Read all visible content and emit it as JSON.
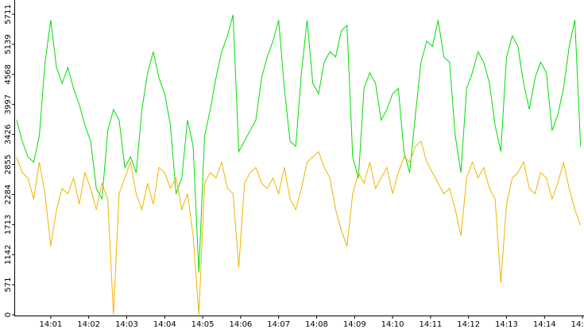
{
  "chart_data": {
    "type": "line",
    "x": [
      840.1,
      840.25,
      840.4,
      840.55,
      840.7,
      840.85,
      841,
      841.15,
      841.3,
      841.45,
      841.6,
      841.75,
      841.9,
      842.05,
      842.2,
      842.35,
      842.5,
      842.65,
      842.8,
      842.95,
      843.1,
      843.25,
      843.4,
      843.55,
      843.7,
      843.85,
      844,
      844.15,
      844.3,
      844.45,
      844.6,
      844.75,
      844.9,
      845.05,
      845.2,
      845.35,
      845.5,
      845.65,
      845.8,
      845.95,
      846.1,
      846.25,
      846.4,
      846.55,
      846.7,
      846.85,
      847,
      847.15,
      847.3,
      847.45,
      847.6,
      847.75,
      847.9,
      848.05,
      848.2,
      848.35,
      848.5,
      848.65,
      848.8,
      848.95,
      849.1,
      849.25,
      849.4,
      849.55,
      849.7,
      849.85,
      850,
      850.15,
      850.3,
      850.45,
      850.6,
      850.75,
      850.9,
      851.05,
      851.2,
      851.35,
      851.5,
      851.65,
      851.8,
      851.95,
      852.1,
      852.25,
      852.4,
      852.55,
      852.7,
      852.85,
      853,
      853.15,
      853.3,
      853.45,
      853.6,
      853.75,
      853.9,
      854.05,
      854.2,
      854.35,
      854.5,
      854.65,
      854.8,
      854.95
    ],
    "series": [
      {
        "color": "#00dd00",
        "values": [
          3700,
          3300,
          3000,
          2900,
          3400,
          4800,
          5600,
          4700,
          4400,
          4700,
          4300,
          4000,
          3600,
          3300,
          2400,
          2200,
          3500,
          3900,
          3700,
          2800,
          3000,
          2700,
          3900,
          4600,
          5000,
          4500,
          4200,
          3600,
          2300,
          2600,
          3700,
          3200,
          800,
          3400,
          3900,
          4500,
          5000,
          5300,
          5700,
          3100,
          3300,
          3500,
          3700,
          4500,
          4900,
          5200,
          5600,
          4300,
          3300,
          3200,
          4600,
          5600,
          4400,
          4200,
          4800,
          5000,
          4900,
          5400,
          5500,
          3000,
          2600,
          4300,
          4600,
          4400,
          3700,
          3900,
          4200,
          4300,
          3100,
          2700,
          3800,
          4800,
          5200,
          5100,
          5600,
          4900,
          4800,
          3400,
          2700,
          4300,
          4600,
          5000,
          4800,
          4400,
          3600,
          3100,
          4900,
          5300,
          5100,
          4400,
          3900,
          4500,
          4800,
          4600,
          3500,
          3800,
          4300,
          5100,
          5600,
          3200
        ]
      },
      {
        "color": "#f0b400",
        "values": [
          3000,
          2700,
          2600,
          2200,
          2900,
          2300,
          1300,
          2000,
          2400,
          2300,
          2600,
          2100,
          2700,
          2400,
          2000,
          2500,
          2200,
          0,
          2300,
          2600,
          2900,
          2300,
          2000,
          2500,
          2100,
          2800,
          2700,
          2400,
          2600,
          2000,
          2300,
          1500,
          0,
          2500,
          2700,
          2600,
          2900,
          2400,
          2300,
          900,
          2500,
          2700,
          2800,
          2500,
          2400,
          2600,
          2300,
          2800,
          2200,
          2000,
          2400,
          2900,
          3000,
          3100,
          2800,
          2600,
          2000,
          1600,
          1300,
          2300,
          2700,
          2500,
          2900,
          2400,
          2600,
          2800,
          2300,
          2700,
          3000,
          2900,
          3200,
          3300,
          2900,
          2700,
          2500,
          2300,
          2400,
          2000,
          1500,
          2600,
          2900,
          2600,
          2800,
          2400,
          2200,
          600,
          2100,
          2600,
          2700,
          2900,
          2400,
          2300,
          2700,
          2600,
          2200,
          2500,
          2900,
          2400,
          2000,
          1700
        ]
      }
    ],
    "xlim": [
      840.04,
      855.04
    ],
    "xticks": [
      {
        "value": 841,
        "label": "14:01"
      },
      {
        "value": 842,
        "label": "14:02"
      },
      {
        "value": 843,
        "label": "14:03"
      },
      {
        "value": 844,
        "label": "14:04"
      },
      {
        "value": 845,
        "label": "14:05"
      },
      {
        "value": 846,
        "label": "14:06"
      },
      {
        "value": 847,
        "label": "14:07"
      },
      {
        "value": 848,
        "label": "14:08"
      },
      {
        "value": 849,
        "label": "14:09"
      },
      {
        "value": 850,
        "label": "14:10"
      },
      {
        "value": 851,
        "label": "14:11"
      },
      {
        "value": 852,
        "label": "14:12"
      },
      {
        "value": 853,
        "label": "14:13"
      },
      {
        "value": 854,
        "label": "14:14"
      },
      {
        "value": 855,
        "label": "14:15"
      }
    ],
    "ylim": [
      0,
      5711
    ],
    "yticks": [
      0,
      571,
      1142,
      1713,
      2284,
      2855,
      3426,
      3997,
      4568,
      5139,
      5711
    ]
  }
}
